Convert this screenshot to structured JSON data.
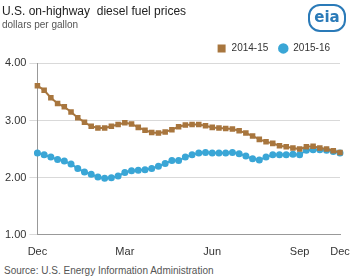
{
  "chart_data": {
    "type": "line",
    "title": "U.S. on-highway  diesel fuel prices",
    "subtitle": "dollars per gallon",
    "logo_text": "eia",
    "source": "Source: U.S. Energy Information Administration",
    "categories": [
      "Dec",
      null,
      null,
      null,
      null,
      null,
      null,
      null,
      null,
      null,
      null,
      null,
      null,
      "Mar",
      null,
      null,
      null,
      null,
      null,
      null,
      null,
      null,
      null,
      null,
      null,
      null,
      "Jun",
      null,
      null,
      null,
      null,
      null,
      null,
      null,
      null,
      null,
      null,
      null,
      null,
      "Sep",
      null,
      null,
      null,
      null,
      null,
      "Dec"
    ],
    "series": [
      {
        "name": "2014-15",
        "color": "#a8763e",
        "marker": "square",
        "values": [
          3.61,
          3.53,
          3.4,
          3.3,
          3.24,
          3.15,
          3.05,
          2.97,
          2.9,
          2.87,
          2.87,
          2.9,
          2.93,
          2.96,
          2.94,
          2.88,
          2.83,
          2.79,
          2.78,
          2.8,
          2.84,
          2.89,
          2.92,
          2.93,
          2.93,
          2.91,
          2.88,
          2.87,
          2.86,
          2.85,
          2.82,
          2.78,
          2.73,
          2.67,
          2.63,
          2.6,
          2.56,
          2.54,
          2.52,
          2.5,
          2.54,
          2.55,
          2.52,
          2.5,
          2.47,
          2.44
        ]
      },
      {
        "name": "2015-16",
        "color": "#3aa6d6",
        "marker": "circle",
        "values": [
          2.43,
          2.4,
          2.36,
          2.32,
          2.29,
          2.24,
          2.16,
          2.1,
          2.06,
          2.01,
          1.99,
          2.0,
          2.03,
          2.09,
          2.12,
          2.13,
          2.14,
          2.16,
          2.2,
          2.25,
          2.3,
          2.3,
          2.36,
          2.4,
          2.43,
          2.44,
          2.43,
          2.43,
          2.43,
          2.44,
          2.42,
          2.38,
          2.33,
          2.31,
          2.36,
          2.4,
          2.4,
          2.4,
          2.41,
          2.4,
          2.48,
          2.49,
          2.49,
          2.48,
          2.46,
          2.43
        ]
      }
    ],
    "ylim": [
      1,
      4
    ],
    "yticks": [
      {
        "value": 1,
        "label": "1.00"
      },
      {
        "value": 2,
        "label": "2.00"
      },
      {
        "value": 3,
        "label": "3.00"
      },
      {
        "value": 4,
        "label": "4.00"
      }
    ],
    "grid": true,
    "legend": "top-right"
  }
}
